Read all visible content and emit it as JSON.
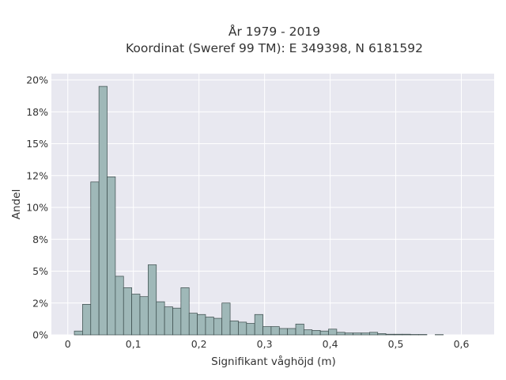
{
  "chart_data": {
    "type": "bar",
    "title_line1": "År 1979 - 2019",
    "title_line2": "Koordinat (Sweref 99 TM): E 349398, N 6181592",
    "xlabel": "Signifikant våghöjd (m)",
    "ylabel": "Andel",
    "xlim": [
      -0.025,
      0.65
    ],
    "ylim": [
      0,
      0.205
    ],
    "x_ticks": [
      {
        "value": 0,
        "label": "0"
      },
      {
        "value": 0.1,
        "label": "0,1"
      },
      {
        "value": 0.2,
        "label": "0,2"
      },
      {
        "value": 0.3,
        "label": "0,3"
      },
      {
        "value": 0.4,
        "label": "0,4"
      },
      {
        "value": 0.5,
        "label": "0,5"
      },
      {
        "value": 0.6,
        "label": "0,6"
      }
    ],
    "y_ticks": [
      {
        "value": 0,
        "label": "0%"
      },
      {
        "value": 0.025,
        "label": "2%"
      },
      {
        "value": 0.05,
        "label": "5%"
      },
      {
        "value": 0.075,
        "label": "8%"
      },
      {
        "value": 0.1,
        "label": "10%"
      },
      {
        "value": 0.125,
        "label": "12%"
      },
      {
        "value": 0.15,
        "label": "15%"
      },
      {
        "value": 0.175,
        "label": "18%"
      },
      {
        "value": 0.2,
        "label": "20%"
      }
    ],
    "bin_width": 0.0125,
    "bin_starts": [
      0.01,
      0.0225,
      0.035,
      0.0475,
      0.06,
      0.0725,
      0.085,
      0.0975,
      0.11,
      0.1225,
      0.135,
      0.1475,
      0.16,
      0.1725,
      0.185,
      0.1975,
      0.21,
      0.2225,
      0.235,
      0.2475,
      0.26,
      0.2725,
      0.285,
      0.2975,
      0.31,
      0.3225,
      0.335,
      0.3475,
      0.36,
      0.3725,
      0.385,
      0.3975,
      0.41,
      0.4225,
      0.435,
      0.4475,
      0.46,
      0.4725,
      0.485,
      0.4975,
      0.51,
      0.5225,
      0.535,
      0.5475,
      0.56,
      0.5725,
      0.585
    ],
    "values": [
      0.003,
      0.024,
      0.12,
      0.195,
      0.124,
      0.046,
      0.037,
      0.032,
      0.03,
      0.055,
      0.026,
      0.022,
      0.021,
      0.037,
      0.017,
      0.016,
      0.014,
      0.013,
      0.025,
      0.011,
      0.01,
      0.009,
      0.016,
      0.0065,
      0.0065,
      0.005,
      0.005,
      0.0085,
      0.004,
      0.0035,
      0.003,
      0.0045,
      0.002,
      0.0015,
      0.0015,
      0.0015,
      0.002,
      0.001,
      0.0005,
      0.0005,
      0.0005,
      0.0003,
      0.0003,
      0,
      0.0002,
      0,
      0
    ],
    "colors": {
      "plot_background": "#e8e8f0",
      "bar_fill": "#9fb8b8",
      "bar_edge": "#3a4a4a",
      "grid": "#ffffff",
      "text": "#333333"
    },
    "grid": true
  }
}
